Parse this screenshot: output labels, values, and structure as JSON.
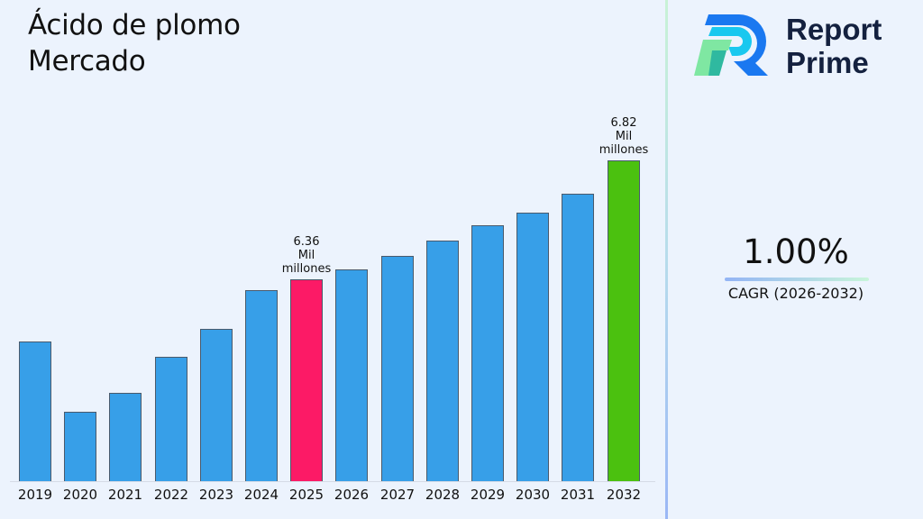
{
  "title": {
    "line1": "Ácido de plomo",
    "line2": "Mercado"
  },
  "logo": {
    "line1": "Report",
    "line2": "Prime",
    "icon": "report-prime-logo-icon"
  },
  "cagr": {
    "value": "1.00%",
    "label": "CAGR (2026-2032)"
  },
  "colors": {
    "bar": "#379fe8",
    "highlight_current": "#fc1a66",
    "highlight_forecast": "#4bc10f",
    "background": "#ecf3fd"
  },
  "chart_data": {
    "type": "bar",
    "title": "Ácido de plomo Mercado",
    "xlabel": "",
    "ylabel": "",
    "unit": "Mil millones",
    "categories": [
      "2019",
      "2020",
      "2021",
      "2022",
      "2023",
      "2024",
      "2025",
      "2026",
      "2027",
      "2028",
      "2029",
      "2030",
      "2031",
      "2032"
    ],
    "values": [
      6.12,
      5.85,
      5.92,
      6.06,
      6.17,
      6.32,
      6.36,
      6.4,
      6.45,
      6.51,
      6.57,
      6.62,
      6.69,
      6.82
    ],
    "annotations": [
      {
        "category": "2025",
        "text": [
          "6.36",
          "Mil",
          "millones"
        ]
      },
      {
        "category": "2032",
        "text": [
          "6.82",
          "Mil",
          "millones"
        ]
      }
    ],
    "grid": false,
    "legend": "none",
    "ylim": [
      5.58,
      6.9
    ]
  }
}
